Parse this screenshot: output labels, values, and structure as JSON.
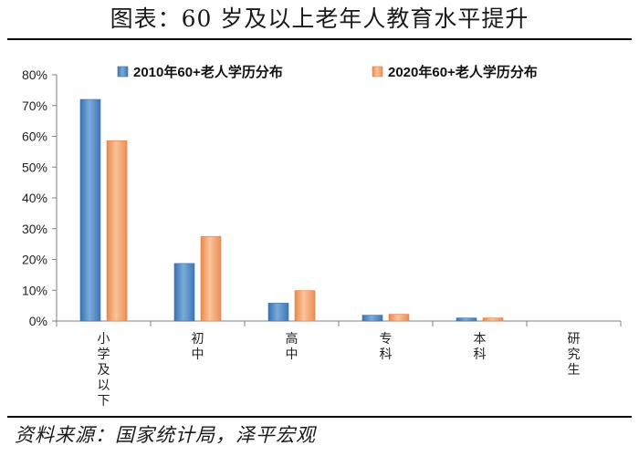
{
  "header": {
    "title": "图表：60 岁及以上老年人教育水平提升"
  },
  "footer": {
    "source": "资料来源：国家统计局，泽平宏观"
  },
  "chart_data": {
    "type": "bar",
    "title": "",
    "xlabel": "",
    "ylabel": "",
    "categories": [
      "小学及以下",
      "初中",
      "高中",
      "专科",
      "本科",
      "研究生"
    ],
    "series": [
      {
        "name": "2010年60+老人学历分布",
        "values": [
          72.0,
          18.7,
          5.8,
          1.9,
          1.0,
          0.0
        ],
        "color": "#4e89c4"
      },
      {
        "name": "2020年60+老人学历分布",
        "values": [
          58.6,
          27.5,
          9.9,
          2.2,
          1.0,
          0.0
        ],
        "color": "#f2a06b"
      }
    ],
    "ylim": [
      0,
      80
    ],
    "yticks": [
      "0%",
      "10%",
      "20%",
      "30%",
      "40%",
      "50%",
      "60%",
      "70%",
      "80%"
    ],
    "legend_position": "top",
    "grid": false
  }
}
